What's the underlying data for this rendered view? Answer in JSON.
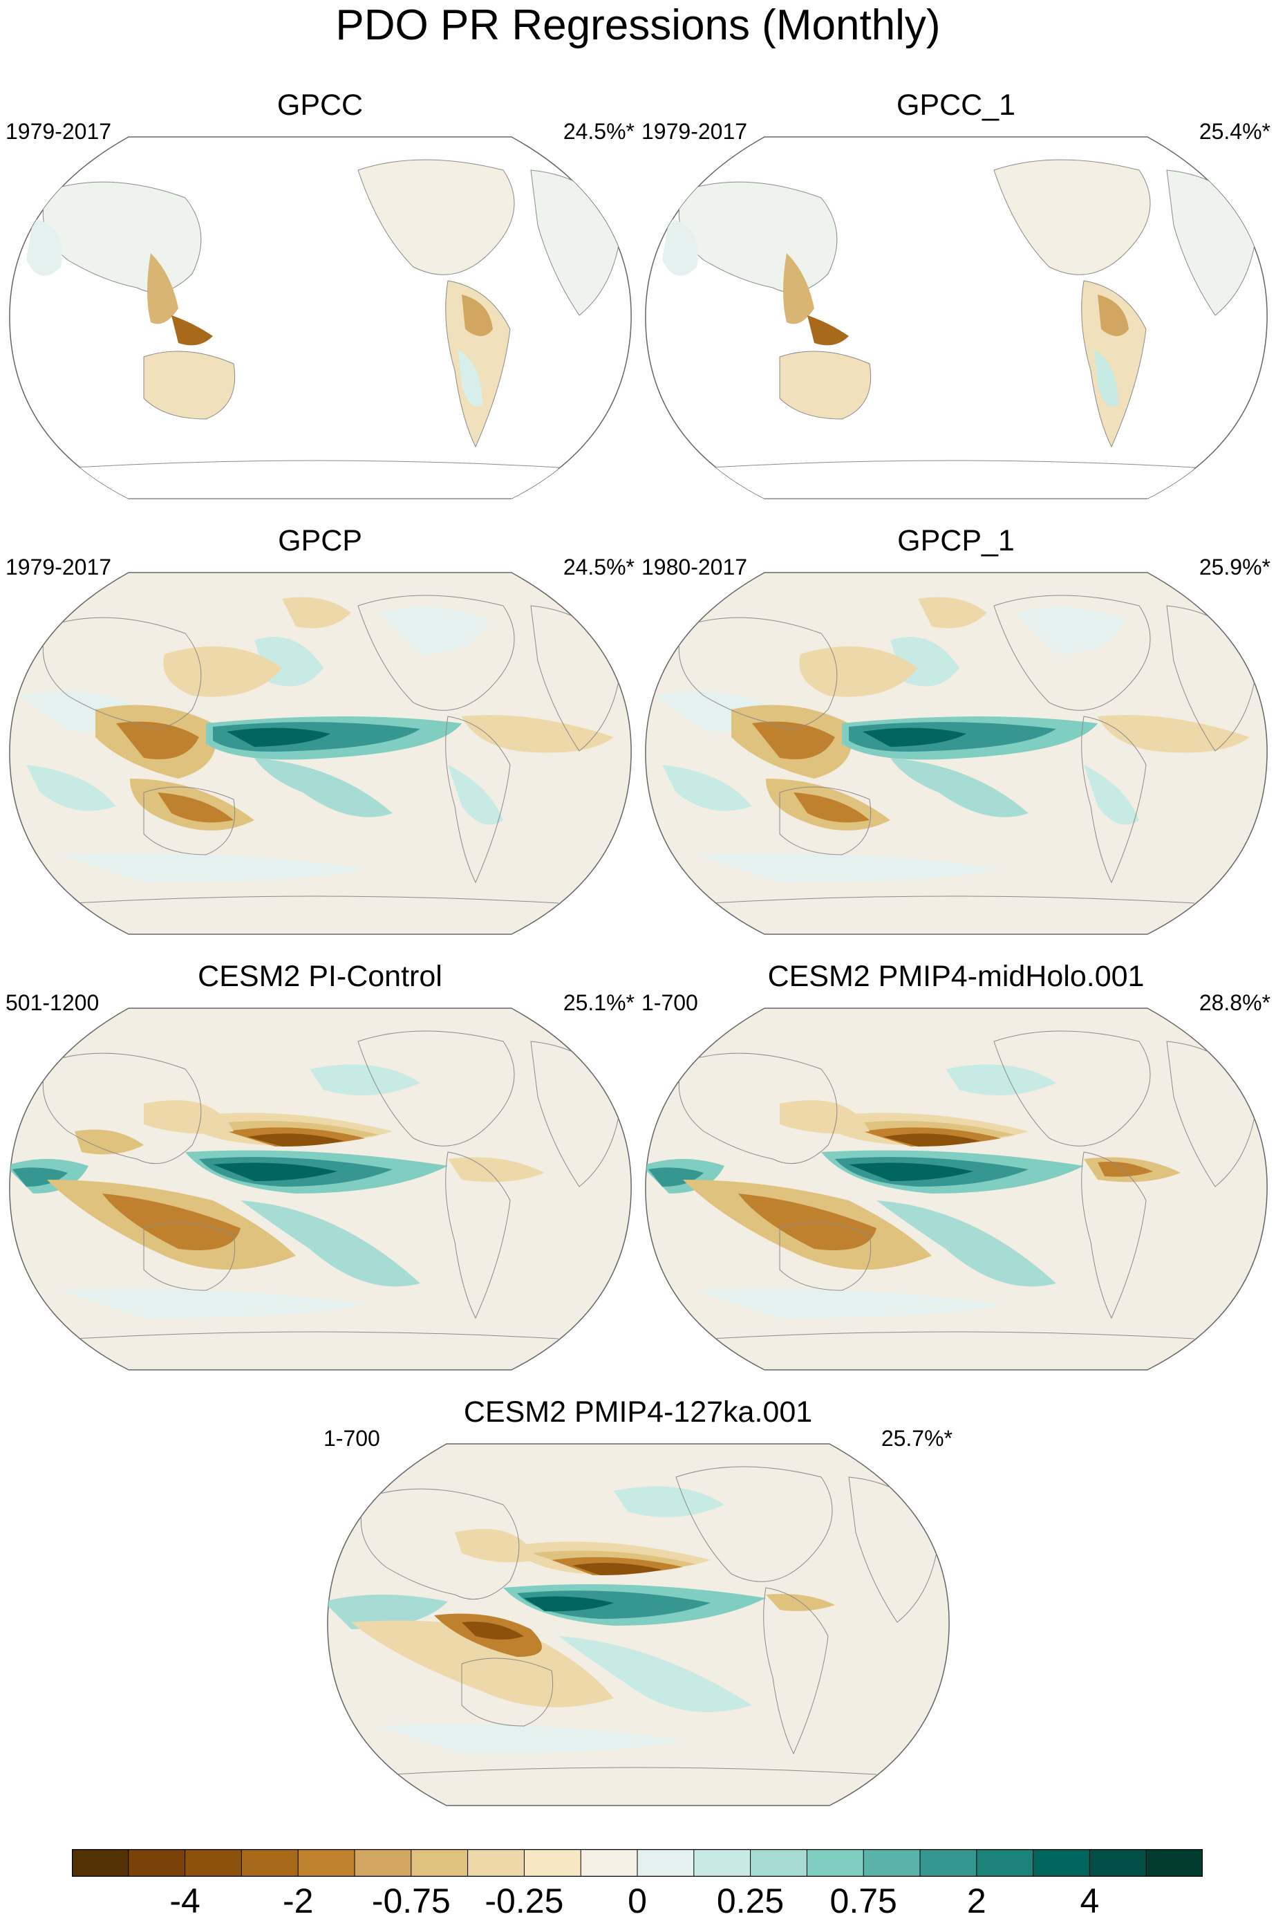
{
  "title": "PDO PR Regressions (Monthly)",
  "panels": [
    {
      "title": "GPCC",
      "period": "1979-2017",
      "variance": "24.5%*"
    },
    {
      "title": "GPCC_1",
      "period": "1979-2017",
      "variance": "25.4%*"
    },
    {
      "title": "GPCP",
      "period": "1979-2017",
      "variance": "24.5%*"
    },
    {
      "title": "GPCP_1",
      "period": "1980-2017",
      "variance": "25.9%*"
    },
    {
      "title": "CESM2 PI-Control",
      "period": "501-1200",
      "variance": "25.1%*"
    },
    {
      "title": "CESM2 PMIP4-midHolo.001",
      "period": "1-700",
      "variance": "28.8%*"
    },
    {
      "title": "CESM2 PMIP4-127ka.001",
      "period": "1-700",
      "variance": "25.7%*"
    }
  ],
  "colorbar": {
    "labels": [
      "-4",
      "-2",
      "-0.75",
      "-0.25",
      "0",
      "0.25",
      "0.75",
      "2",
      "4"
    ],
    "colors": [
      "#543005",
      "#7a4209",
      "#8c510a",
      "#a8691b",
      "#bf812d",
      "#d1a661",
      "#dfc27d",
      "#ecd8a8",
      "#f6e8c3",
      "#f5f0e6",
      "#e4f1ee",
      "#c7eae5",
      "#a6dcd3",
      "#80cdc1",
      "#5ab3a9",
      "#35978f",
      "#1d8279",
      "#01665e",
      "#014f46",
      "#003c30"
    ]
  },
  "colors": {
    "dry_strong": "#8c510a",
    "dry_medium": "#bf812d",
    "dry_light": "#dfc27d",
    "wet_light": "#c7eae5",
    "wet_medium": "#5ab3a9",
    "wet_strong": "#01665e",
    "neutral": "#f3eee4",
    "coast": "#8a8a8a"
  }
}
